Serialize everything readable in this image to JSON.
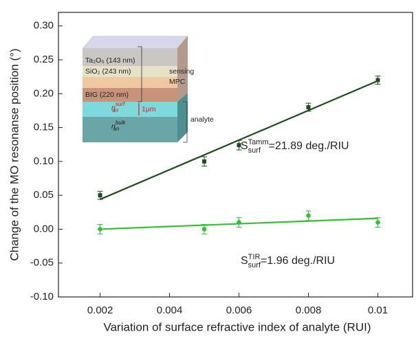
{
  "chart_data": {
    "type": "scatter",
    "ylabel": "Change of the MO resonanse position (°)",
    "xlabel": "Variation of surface refractive index of analyte (RUI)",
    "xlim": [
      0.0008,
      0.011
    ],
    "xticks": [
      0.002,
      0.004,
      0.006,
      0.008,
      0.01
    ],
    "ylim": [
      -0.1,
      0.32
    ],
    "yticks": [
      {
        "value": -0.1,
        "label": "-0.10"
      },
      {
        "value": -0.05,
        "label": "-0.05"
      },
      {
        "value": 0,
        "label": "0.00"
      },
      {
        "value": 0.05,
        "label": "0.05"
      },
      {
        "value": 0.1,
        "label": "0.10"
      },
      {
        "value": 0.15,
        "label": "0.15"
      },
      {
        "value": 0.2,
        "label": "0.20"
      },
      {
        "value": 0.25,
        "label": "0.25"
      },
      {
        "value": 0.3,
        "label": "0.30"
      }
    ],
    "series": [
      {
        "color": "#1b4d1b",
        "marker": "square",
        "x": [
          0.002,
          0.005,
          0.006,
          0.008,
          0.01
        ],
        "values": [
          0.05,
          0.1,
          0.124,
          0.18,
          0.22
        ],
        "errors": [
          0.006,
          0.007,
          0.007,
          0.006,
          0.006
        ],
        "fit": {
          "x": [
            0.002,
            0.01
          ],
          "values": [
            0.044,
            0.219
          ]
        },
        "annotation": {
          "base": "S",
          "sup": "Tamm",
          "sub": "surf",
          "rest": "=21.89 deg./RIU"
        }
      },
      {
        "color": "#2fc42f",
        "marker": "circle",
        "x": [
          0.002,
          0.005,
          0.006,
          0.008,
          0.01
        ],
        "values": [
          0,
          0,
          0.01,
          0.02,
          0.01
        ],
        "errors": [
          0.007,
          0.007,
          0.007,
          0.007,
          0.007
        ],
        "fit": {
          "x": [
            0.002,
            0.01
          ],
          "values": [
            0.0,
            0.016
          ]
        },
        "annotation": {
          "base": "S",
          "sup": "TIR",
          "sub": "surf",
          "rest": "=1.96 deg./RIU"
        }
      }
    ]
  },
  "inset": {
    "ta2o5": "Ta₂O₅ (143 nm)",
    "sio2": "SiO₂ (243 nm)",
    "sensing": "sensing",
    "mpc": "MPC",
    "big": "BIG (220 nm)",
    "n_surf": {
      "base": "n",
      "sup": "surf",
      "sub": "an"
    },
    "thickness": "1μm",
    "analyte": "analyte",
    "n_bulk": {
      "base": "n",
      "sup": "bulk",
      "sub": "an"
    }
  }
}
